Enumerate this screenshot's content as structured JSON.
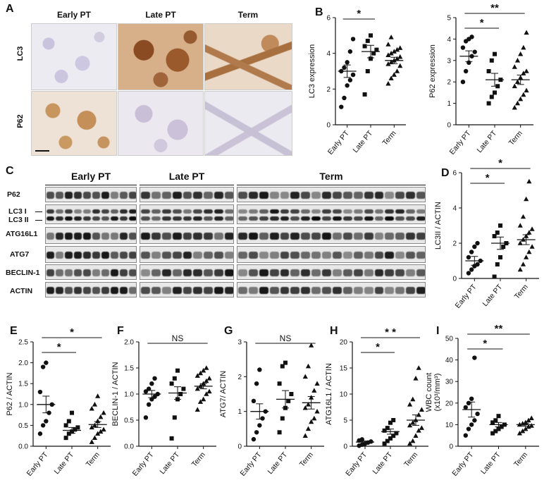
{
  "panelA": {
    "label": "A",
    "columns": [
      "Early PT",
      "Late PT",
      "Term"
    ],
    "rows": [
      "LC3",
      "P62"
    ]
  },
  "panelC": {
    "label": "C",
    "groups": [
      "Early PT",
      "Late PT",
      "Term"
    ],
    "rows": [
      "P62",
      "LC3 I",
      "LC3 II",
      "ATG16L1",
      "ATG7",
      "BECLIN-1",
      "ACTIN"
    ]
  },
  "chart_data": [
    {
      "id": "B1",
      "panel": "B",
      "type": "scatter",
      "ylabel": "LC3 expression",
      "ylim": [
        0,
        6
      ],
      "yticks": [
        0,
        2,
        4,
        6
      ],
      "categories": [
        "Early PT",
        "Late PT",
        "Term"
      ],
      "markers": [
        "circle",
        "square",
        "triangle"
      ],
      "points": [
        [
          1.0,
          1.5,
          2.2,
          2.5,
          2.8,
          3.0,
          3.2,
          3.5,
          4.1,
          4.8
        ],
        [
          1.7,
          3.0,
          3.7,
          4.0,
          4.2,
          4.4,
          4.7,
          5.0
        ],
        [
          2.3,
          2.6,
          2.8,
          3.0,
          3.3,
          3.4,
          3.5,
          3.6,
          3.7,
          3.8,
          3.9,
          4.0,
          4.1,
          4.2,
          4.3,
          4.5,
          4.9
        ]
      ],
      "means": [
        3.0,
        4.1,
        3.6
      ],
      "sems": [
        0.35,
        0.35,
        0.18
      ],
      "significance": [
        {
          "from": 0,
          "to": 1,
          "label": "*"
        }
      ]
    },
    {
      "id": "B2",
      "panel": "",
      "type": "scatter",
      "ylabel": "P62 expression",
      "ylim": [
        0,
        5
      ],
      "yticks": [
        0,
        1,
        2,
        3,
        4,
        5
      ],
      "categories": [
        "Early PT",
        "Late PT",
        "Term"
      ],
      "markers": [
        "circle",
        "square",
        "triangle"
      ],
      "points": [
        [
          2.0,
          2.5,
          2.9,
          3.2,
          3.4,
          3.6,
          3.9,
          4.0,
          4.1
        ],
        [
          1.0,
          1.3,
          1.5,
          1.8,
          2.1,
          2.5,
          3.0,
          3.3
        ],
        [
          0.8,
          1.0,
          1.2,
          1.4,
          1.6,
          1.8,
          2.0,
          2.2,
          2.4,
          2.5,
          2.7,
          3.0,
          3.3,
          3.6,
          4.3
        ]
      ],
      "means": [
        3.2,
        2.1,
        2.1
      ],
      "sems": [
        0.25,
        0.3,
        0.22
      ],
      "significance": [
        {
          "from": 0,
          "to": 1,
          "label": "*"
        },
        {
          "from": 0,
          "to": 2,
          "label": "**"
        }
      ]
    },
    {
      "id": "D",
      "panel": "D",
      "type": "scatter",
      "ylabel": "LC3II / ACTIN",
      "ylim": [
        0,
        6
      ],
      "yticks": [
        0,
        2,
        4,
        6
      ],
      "categories": [
        "Early PT",
        "Late PT",
        "Term"
      ],
      "markers": [
        "circle",
        "square",
        "triangle"
      ],
      "points": [
        [
          0.3,
          0.5,
          0.7,
          0.8,
          1.0,
          1.2,
          1.5,
          1.8,
          2.0
        ],
        [
          0.1,
          0.8,
          1.2,
          1.8,
          2.0,
          2.4,
          2.6,
          3.0
        ],
        [
          0.5,
          0.8,
          1.2,
          1.5,
          1.8,
          2.0,
          2.2,
          2.4,
          2.6,
          2.8,
          3.0,
          3.5,
          4.5,
          5.5
        ]
      ],
      "means": [
        1.0,
        2.0,
        2.2
      ],
      "sems": [
        0.25,
        0.35,
        0.28
      ],
      "significance": [
        {
          "from": 0,
          "to": 1,
          "label": "*"
        },
        {
          "from": 0,
          "to": 2,
          "label": "*"
        }
      ]
    },
    {
      "id": "E",
      "panel": "E",
      "type": "scatter",
      "ylabel": "P62 / ACTIN",
      "ylim": [
        0,
        2.5
      ],
      "yticks": [
        0.0,
        0.5,
        1.0,
        1.5,
        2.0,
        2.5
      ],
      "categories": [
        "Early PT",
        "Late PT",
        "Term"
      ],
      "markers": [
        "circle",
        "square",
        "triangle"
      ],
      "points": [
        [
          0.3,
          0.5,
          0.6,
          0.8,
          1.0,
          1.3,
          1.9,
          2.0
        ],
        [
          0.2,
          0.3,
          0.35,
          0.4,
          0.45,
          0.5,
          0.6,
          0.8
        ],
        [
          0.1,
          0.2,
          0.3,
          0.35,
          0.4,
          0.45,
          0.5,
          0.6,
          0.7,
          0.8,
          0.9,
          1.0,
          1.2
        ]
      ],
      "means": [
        1.0,
        0.38,
        0.52
      ],
      "sems": [
        0.2,
        0.07,
        0.07
      ],
      "significance": [
        {
          "from": 0,
          "to": 1,
          "label": "*"
        },
        {
          "from": 0,
          "to": 2,
          "label": "*"
        }
      ]
    },
    {
      "id": "F",
      "panel": "F",
      "type": "scatter",
      "ylabel": "BECLIN-1 / ACTIN",
      "ylim": [
        0,
        2
      ],
      "yticks": [
        0.0,
        0.5,
        1.0,
        1.5,
        2.0
      ],
      "categories": [
        "Early PT",
        "Late PT",
        "Term"
      ],
      "markers": [
        "circle",
        "square",
        "triangle"
      ],
      "points": [
        [
          0.55,
          0.8,
          0.9,
          0.95,
          1.0,
          1.05,
          1.1,
          1.2,
          1.3
        ],
        [
          0.15,
          0.55,
          0.9,
          1.0,
          1.1,
          1.2,
          1.3,
          1.45
        ],
        [
          0.7,
          0.85,
          0.9,
          1.0,
          1.05,
          1.1,
          1.15,
          1.2,
          1.25,
          1.3,
          1.35,
          1.4,
          1.45,
          1.5
        ]
      ],
      "means": [
        1.0,
        1.02,
        1.15
      ],
      "sems": [
        0.07,
        0.12,
        0.05
      ],
      "significance": [
        {
          "from": 0,
          "to": 2,
          "label": "NS"
        }
      ]
    },
    {
      "id": "G",
      "panel": "G",
      "type": "scatter",
      "ylabel": "ATG7/ ACTIN",
      "ylim": [
        0,
        3
      ],
      "yticks": [
        0,
        1,
        2,
        3
      ],
      "categories": [
        "Early PT",
        "Late PT",
        "Term"
      ],
      "markers": [
        "circle",
        "square",
        "triangle"
      ],
      "points": [
        [
          0.2,
          0.4,
          0.6,
          0.8,
          1.0,
          1.3,
          1.8,
          2.2
        ],
        [
          0.4,
          0.8,
          1.1,
          1.3,
          1.5,
          1.8,
          2.3,
          2.4
        ],
        [
          0.3,
          0.5,
          0.7,
          0.8,
          1.0,
          1.1,
          1.2,
          1.4,
          1.6,
          1.8,
          2.0,
          2.3,
          2.9
        ]
      ],
      "means": [
        1.0,
        1.35,
        1.25
      ],
      "sems": [
        0.22,
        0.25,
        0.18
      ],
      "significance": [
        {
          "from": 0,
          "to": 2,
          "label": "NS"
        }
      ]
    },
    {
      "id": "H",
      "panel": "H",
      "type": "scatter",
      "ylabel": "ATG16L1 / ACTIN",
      "ylim": [
        0,
        20
      ],
      "yticks": [
        0,
        5,
        10,
        15,
        20
      ],
      "categories": [
        "Early PT",
        "Late PT",
        "Term"
      ],
      "markers": [
        "circle",
        "square",
        "triangle"
      ],
      "points": [
        [
          0.1,
          0.3,
          0.5,
          0.7,
          0.9,
          1.1,
          1.3
        ],
        [
          0.5,
          1.0,
          1.5,
          2.0,
          2.5,
          3.0,
          3.5,
          4.5,
          5.0
        ],
        [
          0.5,
          1.0,
          2.0,
          3.0,
          3.5,
          4.0,
          4.5,
          5.0,
          6.0,
          7.0,
          8.0,
          9.0,
          13.0,
          15.0
        ]
      ],
      "means": [
        0.8,
        2.8,
        5.0
      ],
      "sems": [
        0.2,
        0.5,
        1.0
      ],
      "significance": [
        {
          "from": 0,
          "to": 1,
          "label": "*"
        },
        {
          "from": 0,
          "to": 2,
          "label": "* *"
        }
      ]
    },
    {
      "id": "I",
      "panel": "I",
      "type": "scatter",
      "ylabel": "WBC count",
      "ylabel2": "(x10³/mm³)",
      "ylim": [
        0,
        50
      ],
      "yticks": [
        0,
        10,
        20,
        30,
        40,
        50
      ],
      "categories": [
        "Early PT",
        "Late PT",
        "Term"
      ],
      "markers": [
        "circle",
        "square",
        "triangle"
      ],
      "points": [
        [
          5,
          8,
          10,
          12,
          15,
          18,
          20,
          22,
          41
        ],
        [
          6,
          7,
          8,
          9,
          10,
          11,
          12,
          14
        ],
        [
          6,
          7,
          8,
          9,
          9.5,
          10,
          10.5,
          11,
          12,
          13
        ]
      ],
      "means": [
        17,
        10,
        10
      ],
      "sems": [
        3.5,
        1.0,
        0.7
      ],
      "significance": [
        {
          "from": 0,
          "to": 1,
          "label": "*"
        },
        {
          "from": 0,
          "to": 2,
          "label": "**"
        }
      ]
    }
  ]
}
